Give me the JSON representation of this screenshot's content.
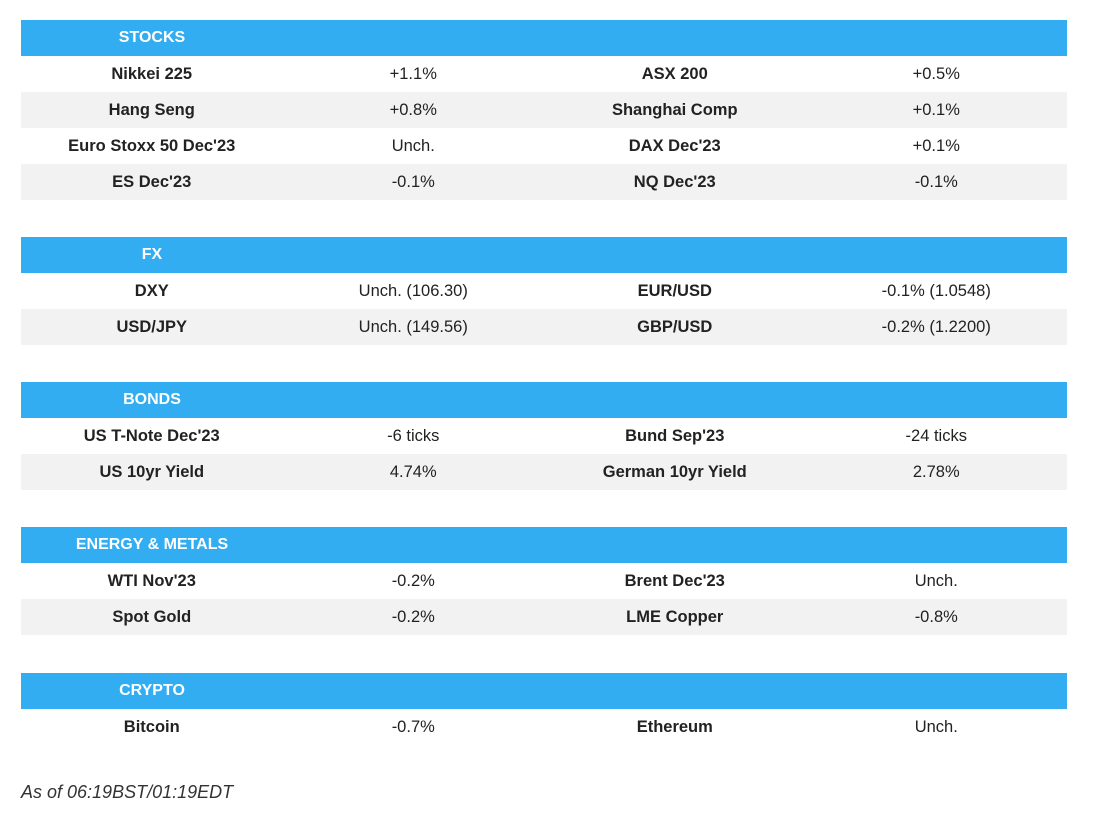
{
  "sections": [
    {
      "title": "STOCKS",
      "rows": [
        [
          "Nikkei 225",
          "+1.1%",
          "ASX 200",
          "+0.5%"
        ],
        [
          "Hang Seng",
          "+0.8%",
          "Shanghai Comp",
          "+0.1%"
        ],
        [
          "Euro Stoxx 50 Dec'23",
          "Unch.",
          "DAX Dec'23",
          "+0.1%"
        ],
        [
          "ES Dec'23",
          "-0.1%",
          "NQ Dec'23",
          "-0.1%"
        ]
      ]
    },
    {
      "title": "FX",
      "rows": [
        [
          "DXY",
          "Unch. (106.30)",
          "EUR/USD",
          "-0.1% (1.0548)"
        ],
        [
          "USD/JPY",
          "Unch. (149.56)",
          "GBP/USD",
          "-0.2% (1.2200)"
        ]
      ]
    },
    {
      "title": "BONDS",
      "rows": [
        [
          "US T-Note Dec'23",
          "-6 ticks",
          "Bund Sep'23",
          "-24 ticks"
        ],
        [
          "US 10yr Yield",
          "4.74%",
          "German 10yr Yield",
          "2.78%"
        ]
      ]
    },
    {
      "title": "ENERGY & METALS",
      "rows": [
        [
          "WTI Nov'23",
          "-0.2%",
          "Brent Dec'23",
          "Unch."
        ],
        [
          "Spot Gold",
          "-0.2%",
          "LME Copper",
          "-0.8%"
        ]
      ]
    },
    {
      "title": "CRYPTO",
      "rows": [
        [
          "Bitcoin",
          "-0.7%",
          "Ethereum",
          "Unch."
        ]
      ]
    }
  ],
  "footer": {
    "note": "As of 06:19BST/01:19EDT"
  },
  "colors": {
    "header_bg": "#33adf2",
    "row_shade": "#f2f2f2"
  }
}
